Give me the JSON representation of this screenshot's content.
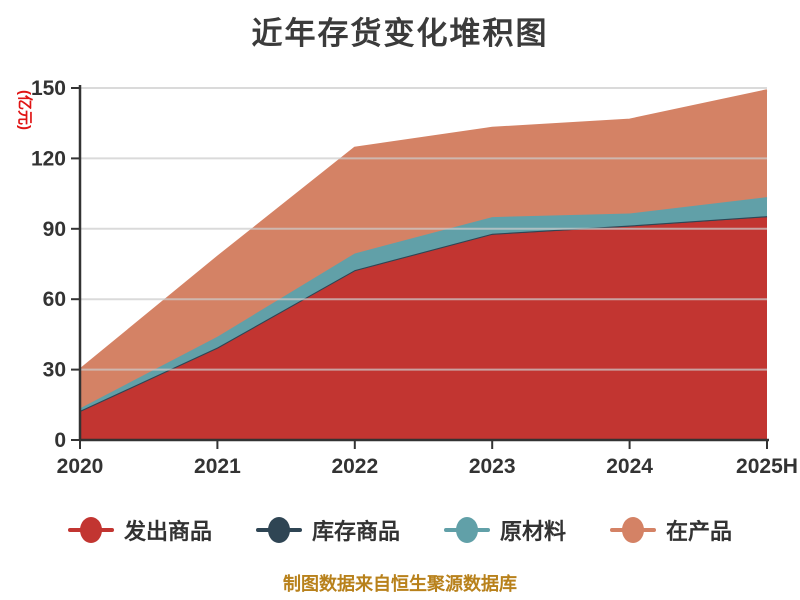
{
  "title": "近年存货变化堆积图",
  "y_axis": {
    "name": "(亿元)",
    "name_color": "#e01414"
  },
  "x_axis": {
    "labels": [
      "2020",
      "2021",
      "2022",
      "2023",
      "2024",
      "2025H"
    ]
  },
  "footer": {
    "text": "制图数据来自恒生聚源数据库",
    "color": "#b8811b"
  },
  "colors": {
    "background": "#ffffff",
    "axis": "#333333",
    "grid": "#cccccc",
    "tick_text": "#333333",
    "title_text": "#3b3b3b"
  },
  "legend": {
    "items": [
      "发出商品",
      "库存商品",
      "原材料",
      "在产品"
    ]
  },
  "chart_data": {
    "type": "area",
    "stacked": true,
    "title": "近年存货变化堆积图",
    "x_categories": [
      "2020",
      "2021",
      "2022",
      "2023",
      "2024",
      "2025H"
    ],
    "series": [
      {
        "name": "发出商品",
        "color": "#c23531",
        "values": [
          12,
          39,
          72,
          87.5,
          91,
          95
        ]
      },
      {
        "name": "库存商品",
        "color": "#2f4554",
        "values": [
          0.4,
          0.4,
          0.4,
          0.4,
          0.4,
          0.4
        ]
      },
      {
        "name": "原材料",
        "color": "#61a0a8",
        "values": [
          1.1,
          4.6,
          7.1,
          7.1,
          5.1,
          8.1
        ]
      },
      {
        "name": "在产品",
        "color": "#d48265",
        "values": [
          16.5,
          34,
          45,
          38,
          40,
          45.5
        ]
      }
    ],
    "stack_totals": [
      30,
      78,
      124.5,
      133,
      136.5,
      149
    ],
    "ylabel": "(亿元)",
    "ylim": [
      0,
      150
    ],
    "yticks": [
      0,
      30,
      60,
      90,
      120,
      150
    ],
    "grid": true,
    "legend_position": "bottom",
    "source_note": "制图数据来自恒生聚源数据库"
  }
}
